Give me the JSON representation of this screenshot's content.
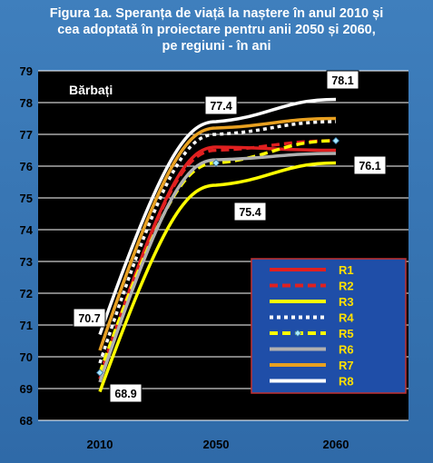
{
  "title_lines": [
    "Figura  1a. Speranța de viață la naștere în anul 2010  și",
    "cea adoptată în proiectare pentru anii 2050 și 2060,",
    "pe regiuni  - în ani"
  ],
  "colors": {
    "background": "#3a79b7",
    "plot_area": "#000000",
    "axis_text": "#000000",
    "grid": "#ffffff",
    "legend_bg": "#1f4ea8",
    "legend_border": "#c03030",
    "legend_text": "#ffe000"
  },
  "chart_data": {
    "type": "line",
    "categories": [
      "2010",
      "2050",
      "2060"
    ],
    "ylim": [
      68,
      79
    ],
    "yticks": [
      68,
      69,
      70,
      71,
      72,
      73,
      74,
      75,
      76,
      77,
      78,
      79
    ],
    "grid": true,
    "legend_position": "bottom-right",
    "annotation_top": "Bărbați",
    "series": [
      {
        "name": "R1",
        "values": [
          69.3,
          76.6,
          76.5
        ],
        "color": "#e02020",
        "dash": "solid"
      },
      {
        "name": "R2",
        "values": [
          69.4,
          76.5,
          76.8
        ],
        "color": "#e02020",
        "dash": "dash"
      },
      {
        "name": "R3",
        "values": [
          68.9,
          75.4,
          76.1
        ],
        "color": "#ffff00",
        "dash": "solid"
      },
      {
        "name": "R4",
        "values": [
          69.8,
          77.0,
          77.4
        ],
        "color": "#ffffff",
        "dash": "dot"
      },
      {
        "name": "R5",
        "values": [
          69.5,
          76.1,
          76.8
        ],
        "color": "#ffff00",
        "dash": "dash"
      },
      {
        "name": "R6",
        "values": [
          69.2,
          76.2,
          76.4
        ],
        "color": "#b0b0b0",
        "dash": "solid"
      },
      {
        "name": "R7",
        "values": [
          70.2,
          77.2,
          77.5
        ],
        "color": "#e8a020",
        "dash": "solid"
      },
      {
        "name": "R8",
        "values": [
          70.7,
          77.4,
          78.1
        ],
        "color": "#ffffff",
        "dash": "solid"
      }
    ],
    "labels": [
      {
        "text": "70.7",
        "x": "2010",
        "y": 70.7
      },
      {
        "text": "68.9",
        "x": "2010",
        "y": 68.9
      },
      {
        "text": "77.4",
        "x": "2050",
        "y": 77.4
      },
      {
        "text": "75.4",
        "x": "2050",
        "y": 75.4
      },
      {
        "text": "78.1",
        "x": "2060",
        "y": 78.1
      },
      {
        "text": "76.1",
        "x": "2060",
        "y": 76.1
      }
    ]
  }
}
